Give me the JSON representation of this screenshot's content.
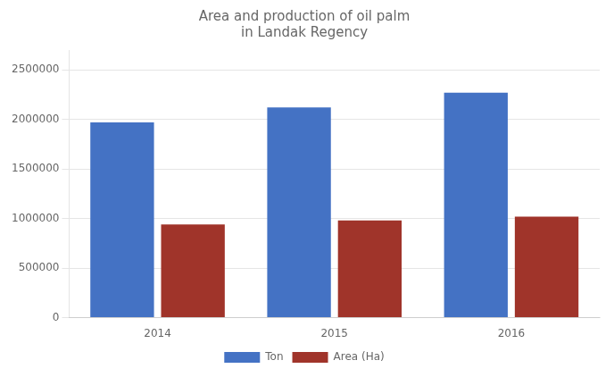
{
  "chart_data": {
    "type": "bar",
    "title": "Area and production of oil palm\nin Landak Regency",
    "categories": [
      "2014",
      "2015",
      "2016"
    ],
    "series": [
      {
        "name": "Ton",
        "color": "#4472C4",
        "values": [
          1970000,
          2120000,
          2270000
        ]
      },
      {
        "name": "Area (Ha)",
        "color": "#A0342A",
        "values": [
          940000,
          980000,
          1020000
        ]
      }
    ],
    "ylim": [
      0,
      2700000
    ],
    "yticks": [
      0,
      500000,
      1000000,
      1500000,
      2000000,
      2500000
    ],
    "grid": true,
    "legend": "bottom"
  }
}
